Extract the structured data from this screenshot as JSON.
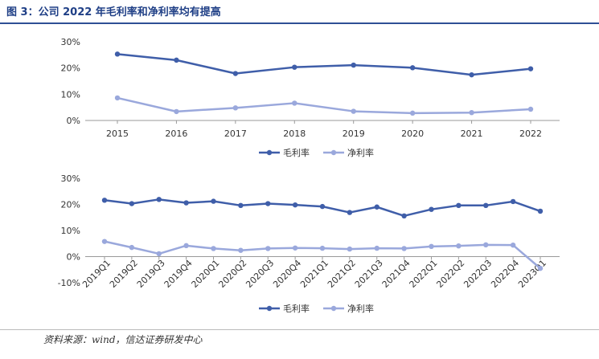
{
  "figure_title": "图 3：公司 2022 年毛利率和净利率均有提高",
  "source": "资料来源：wind，信达证券研发中心",
  "colors": {
    "gross": "#3f5ea9",
    "net": "#9aa8dc",
    "axis": "#555555",
    "grid": "#d9d9d9"
  },
  "chart_data": [
    {
      "type": "line",
      "categories": [
        "2015",
        "2016",
        "2017",
        "2018",
        "2019",
        "2020",
        "2021",
        "2022"
      ],
      "series": [
        {
          "name": "毛利率",
          "values": [
            25.3,
            23.0,
            17.9,
            20.3,
            21.1,
            20.1,
            17.4,
            19.7
          ]
        },
        {
          "name": "净利率",
          "values": [
            8.6,
            3.4,
            4.8,
            6.6,
            3.5,
            2.8,
            3.0,
            4.3
          ]
        }
      ],
      "yticks": [
        "0%",
        "10%",
        "20%",
        "30%"
      ],
      "ylim": [
        0,
        30
      ],
      "grid": false,
      "legend": "bottom-center"
    },
    {
      "type": "line",
      "categories": [
        "2019Q1",
        "2019Q2",
        "2019Q3",
        "2019Q4",
        "2020Q1",
        "2020Q2",
        "2020Q3",
        "2020Q4",
        "2021Q1",
        "2021Q2",
        "2021Q3",
        "2021Q4",
        "2022Q1",
        "2022Q2",
        "2022Q3",
        "2022Q4",
        "2023Q1"
      ],
      "series": [
        {
          "name": "毛利率",
          "values": [
            21.6,
            20.3,
            21.9,
            20.6,
            21.2,
            19.6,
            20.3,
            19.8,
            19.2,
            16.9,
            19.0,
            15.6,
            18.1,
            19.6,
            19.6,
            21.1,
            17.4
          ]
        },
        {
          "name": "净利率",
          "values": [
            5.8,
            3.5,
            1.1,
            4.2,
            3.1,
            2.4,
            3.1,
            3.3,
            3.2,
            2.9,
            3.2,
            3.1,
            3.9,
            4.1,
            4.5,
            4.4,
            -4.5
          ]
        }
      ],
      "yticks": [
        "-10%",
        "0%",
        "10%",
        "20%",
        "30%"
      ],
      "ylim": [
        -10,
        30
      ],
      "grid": false,
      "legend": "bottom-center"
    }
  ]
}
